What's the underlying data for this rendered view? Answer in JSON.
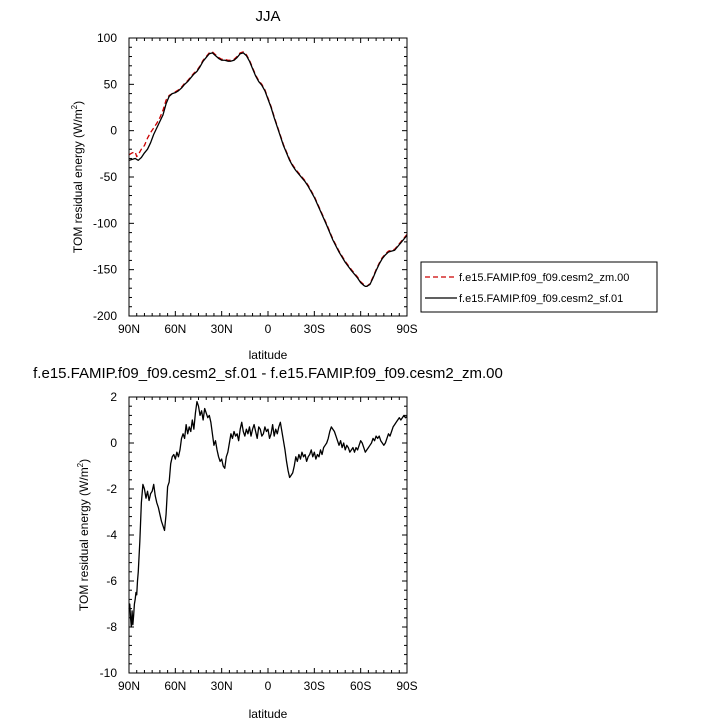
{
  "chart_data": [
    {
      "type": "line",
      "title": "JJA",
      "xlabel": "latitude",
      "ylabel": "TOM residual energy (W/m",
      "ylabel_sup": "2",
      "ylabel_tail": ")",
      "xlim": [
        90,
        -90
      ],
      "ylim": [
        -200,
        100
      ],
      "xticks": [
        90,
        60,
        30,
        0,
        -30,
        -60,
        -90
      ],
      "xticklabels": [
        "90N",
        "60N",
        "30N",
        "0",
        "30S",
        "60S",
        "90S"
      ],
      "yticks": [
        100,
        50,
        0,
        -50,
        -100,
        -150,
        -200
      ],
      "yticklabels": [
        "100",
        "50",
        "0",
        "-50",
        "-100",
        "-150",
        "-200"
      ],
      "legend_position": "right",
      "series": [
        {
          "name": "f.e15.FAMIP.f09_f09.cesm2_zm.00",
          "color": "#cc0000",
          "dash": "dashed",
          "x": [
            90,
            88,
            86,
            85,
            84,
            82,
            80,
            78,
            76,
            74,
            72,
            70,
            68,
            66,
            64,
            62,
            60,
            58,
            56,
            54,
            52,
            50,
            48,
            46,
            44,
            42,
            40,
            38,
            36,
            34,
            32,
            30,
            28,
            26,
            24,
            22,
            20,
            18,
            16,
            14,
            12,
            10,
            8,
            6,
            4,
            2,
            0,
            -2,
            -4,
            -6,
            -8,
            -10,
            -12,
            -14,
            -16,
            -18,
            -20,
            -22,
            -24,
            -26,
            -28,
            -30,
            -34,
            -38,
            -42,
            -46,
            -50,
            -54,
            -58,
            -60,
            -62,
            -63,
            -64,
            -66,
            -68,
            -70,
            -72,
            -74,
            -76,
            -78,
            -80,
            -82,
            -84,
            -86,
            -88,
            -90
          ],
          "y": [
            -26,
            -24,
            -23,
            -28,
            -26,
            -20,
            -16,
            -8,
            -2,
            3,
            8,
            14,
            22,
            33,
            38,
            40,
            42,
            44,
            47,
            51,
            54,
            58,
            62,
            65,
            70,
            76,
            80,
            84,
            85,
            82,
            79,
            77,
            77,
            76,
            76,
            77,
            80,
            84,
            85,
            82,
            76,
            68,
            60,
            54,
            50,
            44,
            35,
            26,
            15,
            5,
            -5,
            -15,
            -23,
            -31,
            -37,
            -42,
            -46,
            -50,
            -54,
            -59,
            -65,
            -71,
            -86,
            -101,
            -117,
            -130,
            -141,
            -150,
            -158,
            -163,
            -166,
            -168,
            -168,
            -165,
            -158,
            -150,
            -143,
            -137,
            -133,
            -130,
            -129,
            -128,
            -124,
            -120,
            -116,
            -112
          ]
        },
        {
          "name": "f.e15.FAMIP.f09_f09.cesm2_sf.01",
          "color": "#000000",
          "dash": "solid",
          "x": [
            90,
            88,
            86,
            85,
            84,
            82,
            80,
            78,
            76,
            74,
            72,
            70,
            68,
            66,
            64,
            62,
            60,
            58,
            56,
            54,
            52,
            50,
            48,
            46,
            44,
            42,
            40,
            38,
            36,
            34,
            32,
            30,
            28,
            26,
            24,
            22,
            20,
            18,
            16,
            14,
            12,
            10,
            8,
            6,
            4,
            2,
            0,
            -2,
            -4,
            -6,
            -8,
            -10,
            -12,
            -14,
            -16,
            -18,
            -20,
            -22,
            -24,
            -26,
            -28,
            -30,
            -34,
            -38,
            -42,
            -46,
            -50,
            -54,
            -58,
            -60,
            -62,
            -63,
            -64,
            -66,
            -68,
            -70,
            -72,
            -74,
            -76,
            -78,
            -80,
            -82,
            -84,
            -86,
            -88,
            -90
          ],
          "y": [
            -32,
            -31,
            -30,
            -31,
            -32,
            -29,
            -24,
            -20,
            -13,
            -4,
            3,
            10,
            17,
            29,
            37,
            40,
            41,
            43,
            46,
            50,
            53,
            57,
            61,
            64,
            69,
            75,
            79,
            83,
            84,
            81,
            78,
            76,
            76,
            75,
            75,
            76,
            79,
            83,
            84,
            81,
            75,
            67,
            59,
            53,
            49,
            43,
            34,
            25,
            14,
            4,
            -6,
            -16,
            -24,
            -32,
            -38,
            -43,
            -47,
            -51,
            -55,
            -60,
            -66,
            -72,
            -87,
            -102,
            -118,
            -131,
            -142,
            -151,
            -159,
            -164,
            -167,
            -168,
            -168,
            -166,
            -159,
            -151,
            -144,
            -138,
            -134,
            -131,
            -130,
            -129,
            -125,
            -121,
            -117,
            -113
          ]
        }
      ]
    },
    {
      "type": "line",
      "title": "f.e15.FAMIP.f09_f09.cesm2_sf.01 - f.e15.FAMIP.f09_f09.cesm2_zm.00",
      "xlabel": "latitude",
      "ylabel": "TOM residual energy (W/m",
      "ylabel_sup": "2",
      "ylabel_tail": ")",
      "xlim": [
        90,
        -90
      ],
      "ylim": [
        -10,
        2
      ],
      "xticks": [
        90,
        60,
        30,
        0,
        -30,
        -60,
        -90
      ],
      "xticklabels": [
        "90N",
        "60N",
        "30N",
        "0",
        "30S",
        "60S",
        "90S"
      ],
      "yticks": [
        2,
        0,
        -2,
        -4,
        -6,
        -8,
        -10
      ],
      "yticklabels": [
        "2",
        "0",
        "-2",
        "-4",
        "-6",
        "-8",
        "-10"
      ],
      "series": [
        {
          "color": "#000000",
          "dash": "solid",
          "x": [
            90,
            89.5,
            89,
            88.5,
            88,
            87.5,
            87,
            86.5,
            86,
            85.5,
            85,
            84.5,
            84,
            83,
            82,
            81,
            80,
            79,
            78,
            77,
            76,
            75,
            74,
            73,
            72,
            71,
            70,
            69,
            68,
            67,
            66,
            65,
            64,
            63,
            62,
            61,
            60,
            59,
            58,
            57,
            56,
            55,
            54,
            53,
            52,
            51,
            50,
            49,
            48,
            47,
            46,
            45,
            44,
            43,
            42,
            41,
            40,
            39,
            38,
            37,
            36,
            35,
            34,
            33,
            32,
            31,
            30,
            29,
            28,
            27,
            26,
            25,
            24,
            23,
            22,
            21,
            20,
            19,
            18,
            17,
            16,
            15,
            14,
            13,
            12,
            11,
            10,
            9,
            8,
            7,
            6,
            5,
            4,
            3,
            2,
            1,
            0,
            -1,
            -2,
            -3,
            -4,
            -5,
            -6,
            -7,
            -8,
            -9,
            -10,
            -11,
            -12,
            -13,
            -14,
            -15,
            -16,
            -17,
            -18,
            -19,
            -20,
            -21,
            -22,
            -23,
            -24,
            -25,
            -26,
            -27,
            -28,
            -29,
            -30,
            -31,
            -32,
            -33,
            -34,
            -35,
            -36,
            -37,
            -38,
            -39,
            -40,
            -41,
            -42,
            -43,
            -44,
            -45,
            -46,
            -47,
            -48,
            -49,
            -50,
            -51,
            -52,
            -53,
            -54,
            -55,
            -56,
            -57,
            -58,
            -59,
            -60,
            -61,
            -62,
            -63,
            -64,
            -65,
            -66,
            -67,
            -68,
            -69,
            -70,
            -71,
            -72,
            -73,
            -74,
            -75,
            -76,
            -77,
            -78,
            -79,
            -80,
            -81,
            -82,
            -83,
            -84,
            -85,
            -86,
            -87,
            -88,
            -89,
            -90
          ],
          "y": [
            -7.2,
            -7.0,
            -7.6,
            -8.0,
            -7.3,
            -7.9,
            -7.5,
            -7.0,
            -6.8,
            -6.5,
            -6.6,
            -6.0,
            -5.6,
            -4.3,
            -2.6,
            -1.8,
            -2.0,
            -2.4,
            -2.1,
            -2.5,
            -2.2,
            -2.1,
            -1.8,
            -2.3,
            -2.6,
            -2.8,
            -3.1,
            -3.4,
            -3.6,
            -3.8,
            -3.1,
            -1.9,
            -1.7,
            -0.9,
            -0.6,
            -0.5,
            -0.7,
            -0.4,
            -0.6,
            -0.3,
            0.2,
            0.4,
            0.2,
            0.8,
            0.4,
            0.7,
            0.5,
            1.0,
            0.6,
            1.3,
            1.8,
            1.6,
            1.2,
            1.4,
            1.0,
            1.5,
            1.3,
            1.1,
            1.2,
            0.9,
            0.4,
            -0.1,
            0.1,
            -0.3,
            -0.6,
            -0.8,
            -0.7,
            -1.0,
            -1.1,
            -0.6,
            -0.4,
            0.0,
            0.4,
            0.2,
            0.5,
            0.3,
            0.4,
            0.1,
            0.6,
            0.9,
            0.5,
            0.3,
            0.6,
            0.4,
            0.7,
            0.3,
            0.6,
            0.8,
            0.5,
            0.2,
            0.7,
            0.6,
            0.3,
            0.4,
            0.7,
            0.5,
            0.6,
            0.2,
            0.4,
            0.8,
            0.3,
            0.6,
            0.4,
            0.7,
            0.9,
            0.5,
            0.1,
            -0.3,
            -0.8,
            -1.2,
            -1.5,
            -1.4,
            -1.3,
            -1.0,
            -0.6,
            -0.8,
            -0.5,
            -0.7,
            -0.4,
            -0.6,
            -0.5,
            -0.8,
            -0.6,
            -0.5,
            -0.3,
            -0.6,
            -0.4,
            -0.7,
            -0.5,
            -0.6,
            -0.3,
            -0.5,
            -0.2,
            -0.1,
            0.0,
            0.2,
            0.5,
            0.7,
            0.6,
            0.5,
            0.3,
            0.1,
            -0.1,
            0.1,
            -0.2,
            0.0,
            -0.3,
            -0.1,
            -0.2,
            -0.4,
            -0.3,
            -0.2,
            -0.4,
            -0.2,
            -0.3,
            -0.1,
            0.1,
            0.0,
            -0.2,
            -0.4,
            -0.3,
            -0.2,
            -0.1,
            0.0,
            0.2,
            0.1,
            0.3,
            0.2,
            0.3,
            0.1,
            0.0,
            -0.1,
            0.0,
            0.2,
            0.4,
            0.3,
            0.5,
            0.7,
            0.8,
            0.9,
            1.0,
            1.1,
            1.0,
            1.1,
            1.2,
            1.1,
            1.15
          ]
        }
      ]
    }
  ]
}
